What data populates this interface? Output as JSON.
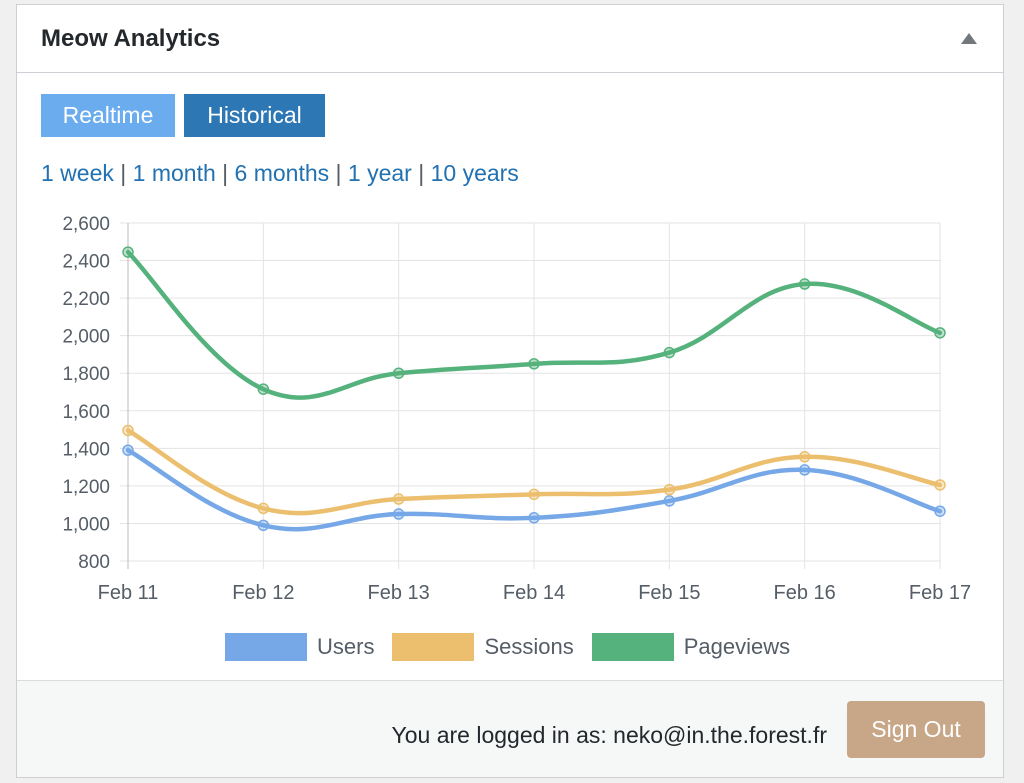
{
  "widget": {
    "title": "Meow Analytics"
  },
  "tabs": [
    {
      "label": "Realtime",
      "color": "#6aacee"
    },
    {
      "label": "Historical",
      "color": "#2e77b5"
    }
  ],
  "ranges": [
    "1 week",
    "1 month",
    "6 months",
    "1 year",
    "10 years"
  ],
  "chart_data": {
    "type": "line",
    "categories": [
      "Feb 11",
      "Feb 12",
      "Feb 13",
      "Feb 14",
      "Feb 15",
      "Feb 16",
      "Feb 17"
    ],
    "series": [
      {
        "name": "Users",
        "color": "#76a8e8",
        "values": [
          1390,
          990,
          1050,
          1030,
          1120,
          1285,
          1065
        ]
      },
      {
        "name": "Sessions",
        "color": "#ebbf6e",
        "values": [
          1495,
          1080,
          1130,
          1155,
          1180,
          1355,
          1205
        ]
      },
      {
        "name": "Pageviews",
        "color": "#56b27c",
        "values": [
          2445,
          1715,
          1800,
          1850,
          1910,
          2275,
          2015
        ]
      }
    ],
    "yticks": [
      "2,600",
      "2,400",
      "2,200",
      "2,000",
      "1,800",
      "1,600",
      "1,400",
      "1,200",
      "1,000",
      "800"
    ],
    "ylim": [
      800,
      2600
    ],
    "grid": true,
    "legend": "bottom"
  },
  "footer": {
    "login_text": "You are logged in as: neko@in.the.forest.fr",
    "signout_label": "Sign Out",
    "signout_color": "#c8a688"
  }
}
